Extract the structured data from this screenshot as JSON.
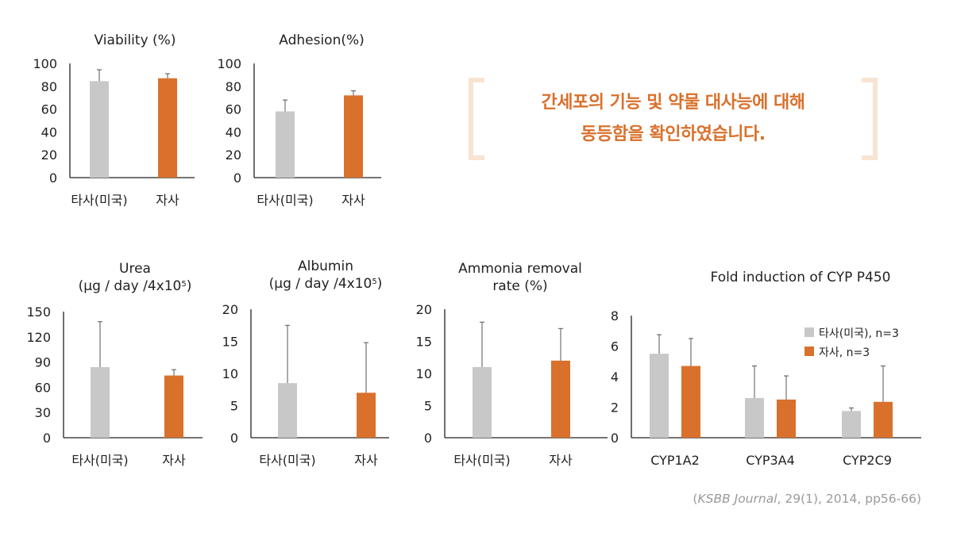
{
  "colors": {
    "competitor": "#c8c8c8",
    "company": "#d9712c",
    "axis": "#222222",
    "callout": "#d9712c",
    "bracket": "#f8e4d2",
    "citation": "#9a9a9a"
  },
  "callout": {
    "line1": "간세포의 기능 및 약물 대사능에 대해",
    "line2": "동등함을 확인하였습니다."
  },
  "citation": {
    "open": "(",
    "journal": "KSBB Journal",
    "details": ", 29(1), 2014, pp56-66)"
  },
  "chart_data": [
    {
      "id": "viability",
      "type": "bar",
      "title_lines": [
        "Viability (%)"
      ],
      "categories": [
        "타사(미국)",
        "자사"
      ],
      "values": [
        84.5,
        87
      ],
      "error_upper": [
        94.5,
        91
      ],
      "ylim": [
        0,
        100
      ],
      "yticks": [
        0,
        20,
        40,
        60,
        80,
        100
      ]
    },
    {
      "id": "adhesion",
      "type": "bar",
      "title_lines": [
        "Adhesion(%)"
      ],
      "categories": [
        "타사(미국)",
        "자사"
      ],
      "values": [
        58,
        72
      ],
      "error_upper": [
        68,
        76
      ],
      "ylim": [
        0,
        100
      ],
      "yticks": [
        0,
        20,
        40,
        60,
        80,
        100
      ]
    },
    {
      "id": "urea",
      "type": "bar",
      "title_lines": [
        "Urea",
        "(μg / day /4x10",
        "5",
        ")"
      ],
      "categories": [
        "타사(미국)",
        "자사"
      ],
      "values": [
        84,
        74
      ],
      "error_upper": [
        138,
        81
      ],
      "ylim": [
        0,
        150
      ],
      "yticks": [
        0,
        30,
        60,
        90,
        120,
        150
      ]
    },
    {
      "id": "albumin",
      "type": "bar",
      "title_lines": [
        "Albumin",
        "(μg / day /4x10",
        "5",
        ")"
      ],
      "categories": [
        "타사(미국)",
        "자사"
      ],
      "values": [
        8.5,
        7
      ],
      "error_upper": [
        17.5,
        14.8
      ],
      "ylim": [
        0,
        20
      ],
      "yticks": [
        0,
        5,
        10,
        15,
        20
      ]
    },
    {
      "id": "ammonia",
      "type": "bar",
      "title_lines": [
        "Ammonia removal",
        "rate (%)"
      ],
      "categories": [
        "타사(미국)",
        "자사"
      ],
      "values": [
        11,
        12
      ],
      "error_upper": [
        18,
        17
      ],
      "ylim": [
        0,
        20
      ],
      "yticks": [
        0,
        5,
        10,
        15,
        20
      ]
    },
    {
      "id": "cyp",
      "type": "bar",
      "title_lines": [
        "Fold induction of CYP P450"
      ],
      "categories": [
        "CYP1A2",
        "CYP3A4",
        "CYP2C9"
      ],
      "series": [
        {
          "name": "타사(미국), n=3",
          "values": [
            5.5,
            2.6,
            1.75
          ],
          "error_upper": [
            6.75,
            4.7,
            1.95
          ]
        },
        {
          "name": "자사, n=3",
          "values": [
            4.7,
            2.5,
            2.35
          ],
          "error_upper": [
            6.5,
            4.05,
            4.7
          ]
        }
      ],
      "legend": "top-right",
      "ylim": [
        0,
        8
      ],
      "yticks": [
        0,
        2,
        4,
        6,
        8
      ]
    }
  ]
}
